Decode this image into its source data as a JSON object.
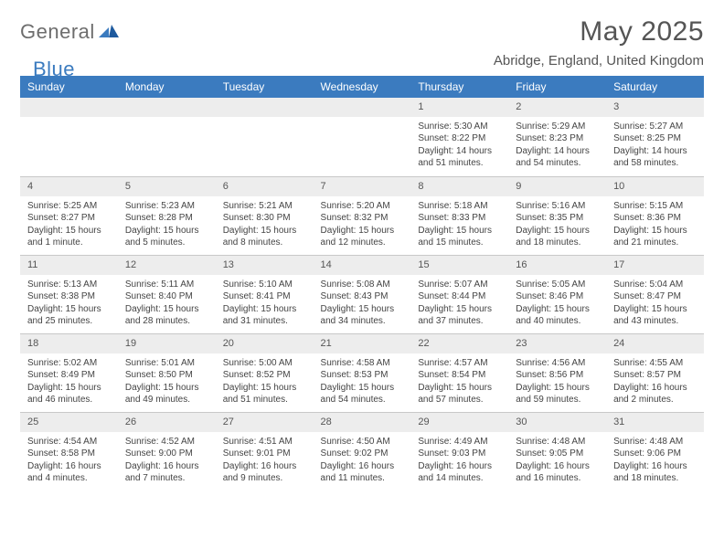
{
  "logo": {
    "general": "General",
    "blue": "Blue"
  },
  "title": "May 2025",
  "subtitle": "Abridge, England, United Kingdom",
  "colors": {
    "header_bg": "#3b7bbf",
    "header_fg": "#ffffff",
    "daynum_bg": "#ededed",
    "border": "#c8c8c8",
    "text": "#444444",
    "title": "#555555",
    "logo_gray": "#6d6d6d",
    "logo_blue": "#3b7bbf"
  },
  "day_headers": [
    "Sunday",
    "Monday",
    "Tuesday",
    "Wednesday",
    "Thursday",
    "Friday",
    "Saturday"
  ],
  "weeks": [
    [
      null,
      null,
      null,
      null,
      {
        "n": "1",
        "sunrise": "5:30 AM",
        "sunset": "8:22 PM",
        "daylight": "14 hours and 51 minutes."
      },
      {
        "n": "2",
        "sunrise": "5:29 AM",
        "sunset": "8:23 PM",
        "daylight": "14 hours and 54 minutes."
      },
      {
        "n": "3",
        "sunrise": "5:27 AM",
        "sunset": "8:25 PM",
        "daylight": "14 hours and 58 minutes."
      }
    ],
    [
      {
        "n": "4",
        "sunrise": "5:25 AM",
        "sunset": "8:27 PM",
        "daylight": "15 hours and 1 minute."
      },
      {
        "n": "5",
        "sunrise": "5:23 AM",
        "sunset": "8:28 PM",
        "daylight": "15 hours and 5 minutes."
      },
      {
        "n": "6",
        "sunrise": "5:21 AM",
        "sunset": "8:30 PM",
        "daylight": "15 hours and 8 minutes."
      },
      {
        "n": "7",
        "sunrise": "5:20 AM",
        "sunset": "8:32 PM",
        "daylight": "15 hours and 12 minutes."
      },
      {
        "n": "8",
        "sunrise": "5:18 AM",
        "sunset": "8:33 PM",
        "daylight": "15 hours and 15 minutes."
      },
      {
        "n": "9",
        "sunrise": "5:16 AM",
        "sunset": "8:35 PM",
        "daylight": "15 hours and 18 minutes."
      },
      {
        "n": "10",
        "sunrise": "5:15 AM",
        "sunset": "8:36 PM",
        "daylight": "15 hours and 21 minutes."
      }
    ],
    [
      {
        "n": "11",
        "sunrise": "5:13 AM",
        "sunset": "8:38 PM",
        "daylight": "15 hours and 25 minutes."
      },
      {
        "n": "12",
        "sunrise": "5:11 AM",
        "sunset": "8:40 PM",
        "daylight": "15 hours and 28 minutes."
      },
      {
        "n": "13",
        "sunrise": "5:10 AM",
        "sunset": "8:41 PM",
        "daylight": "15 hours and 31 minutes."
      },
      {
        "n": "14",
        "sunrise": "5:08 AM",
        "sunset": "8:43 PM",
        "daylight": "15 hours and 34 minutes."
      },
      {
        "n": "15",
        "sunrise": "5:07 AM",
        "sunset": "8:44 PM",
        "daylight": "15 hours and 37 minutes."
      },
      {
        "n": "16",
        "sunrise": "5:05 AM",
        "sunset": "8:46 PM",
        "daylight": "15 hours and 40 minutes."
      },
      {
        "n": "17",
        "sunrise": "5:04 AM",
        "sunset": "8:47 PM",
        "daylight": "15 hours and 43 minutes."
      }
    ],
    [
      {
        "n": "18",
        "sunrise": "5:02 AM",
        "sunset": "8:49 PM",
        "daylight": "15 hours and 46 minutes."
      },
      {
        "n": "19",
        "sunrise": "5:01 AM",
        "sunset": "8:50 PM",
        "daylight": "15 hours and 49 minutes."
      },
      {
        "n": "20",
        "sunrise": "5:00 AM",
        "sunset": "8:52 PM",
        "daylight": "15 hours and 51 minutes."
      },
      {
        "n": "21",
        "sunrise": "4:58 AM",
        "sunset": "8:53 PM",
        "daylight": "15 hours and 54 minutes."
      },
      {
        "n": "22",
        "sunrise": "4:57 AM",
        "sunset": "8:54 PM",
        "daylight": "15 hours and 57 minutes."
      },
      {
        "n": "23",
        "sunrise": "4:56 AM",
        "sunset": "8:56 PM",
        "daylight": "15 hours and 59 minutes."
      },
      {
        "n": "24",
        "sunrise": "4:55 AM",
        "sunset": "8:57 PM",
        "daylight": "16 hours and 2 minutes."
      }
    ],
    [
      {
        "n": "25",
        "sunrise": "4:54 AM",
        "sunset": "8:58 PM",
        "daylight": "16 hours and 4 minutes."
      },
      {
        "n": "26",
        "sunrise": "4:52 AM",
        "sunset": "9:00 PM",
        "daylight": "16 hours and 7 minutes."
      },
      {
        "n": "27",
        "sunrise": "4:51 AM",
        "sunset": "9:01 PM",
        "daylight": "16 hours and 9 minutes."
      },
      {
        "n": "28",
        "sunrise": "4:50 AM",
        "sunset": "9:02 PM",
        "daylight": "16 hours and 11 minutes."
      },
      {
        "n": "29",
        "sunrise": "4:49 AM",
        "sunset": "9:03 PM",
        "daylight": "16 hours and 14 minutes."
      },
      {
        "n": "30",
        "sunrise": "4:48 AM",
        "sunset": "9:05 PM",
        "daylight": "16 hours and 16 minutes."
      },
      {
        "n": "31",
        "sunrise": "4:48 AM",
        "sunset": "9:06 PM",
        "daylight": "16 hours and 18 minutes."
      }
    ]
  ],
  "labels": {
    "sunrise": "Sunrise: ",
    "sunset": "Sunset: ",
    "daylight": "Daylight: "
  }
}
